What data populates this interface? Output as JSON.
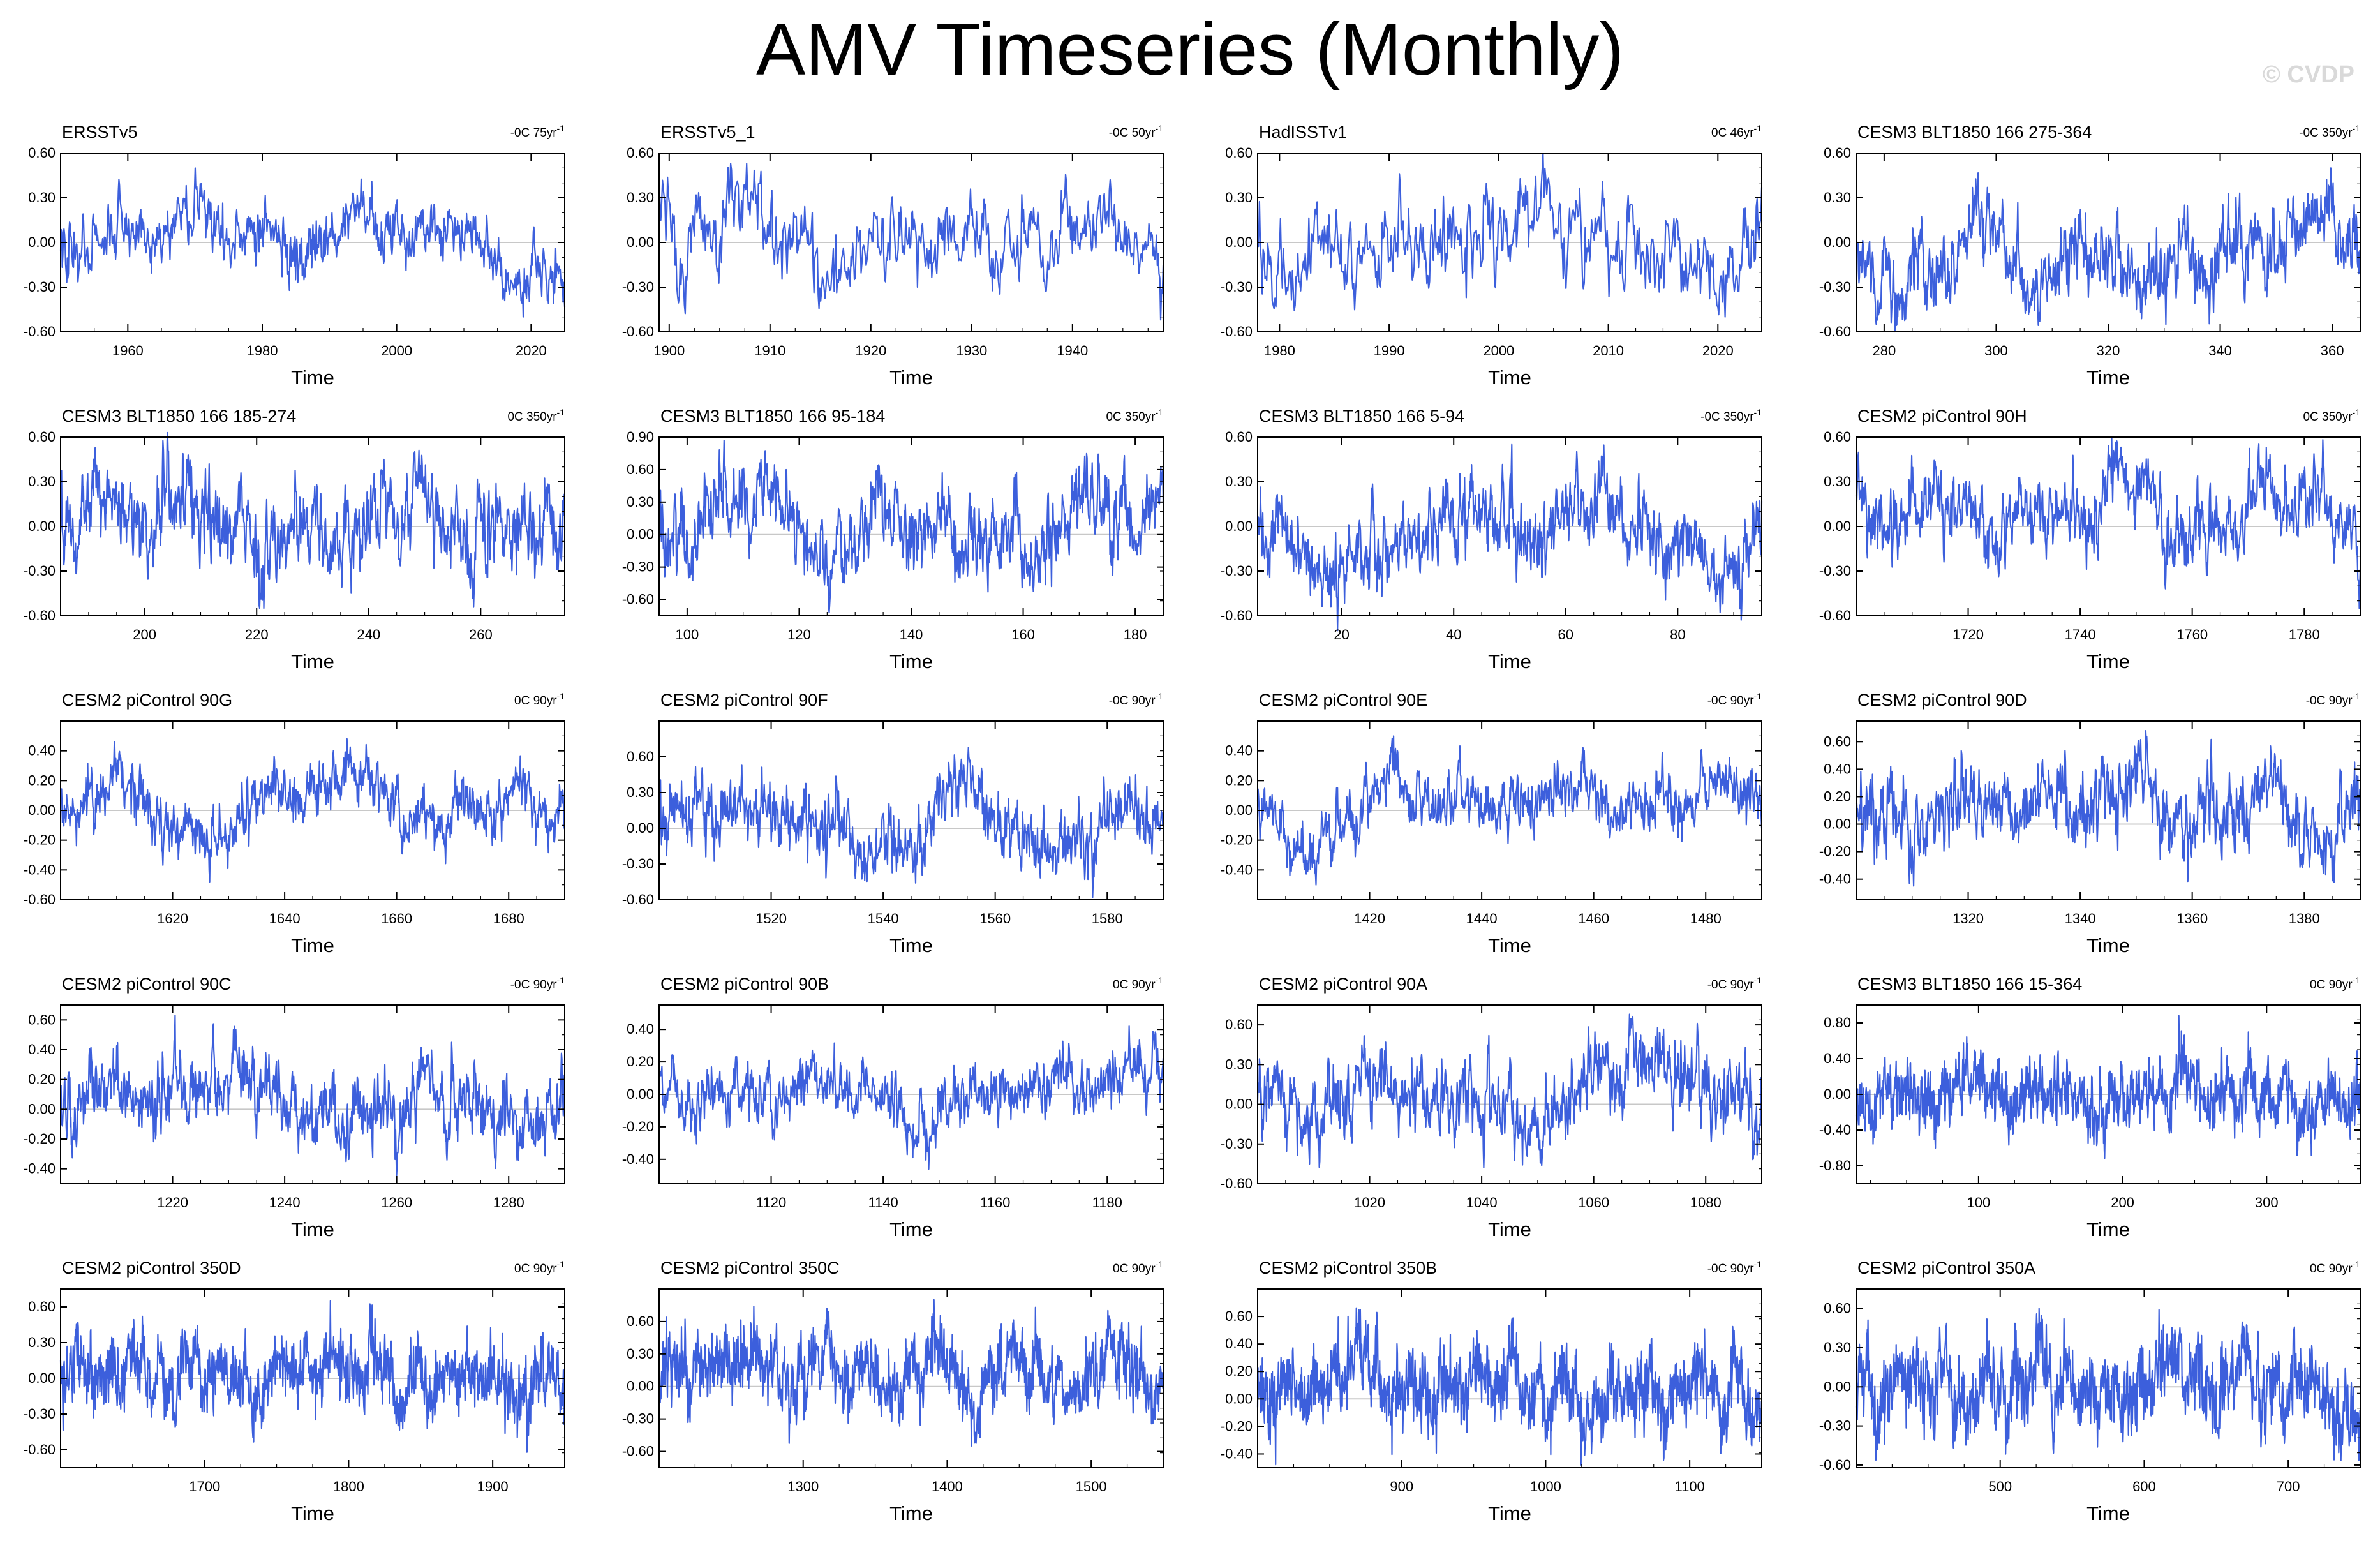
{
  "title": "AMV Timeseries (Monthly)",
  "watermark": "© CVDP",
  "colors": {
    "line": "#3c5fdc",
    "frame": "#000000",
    "zero": "#c8c8c8"
  },
  "chart_data": [
    {
      "type": "line",
      "title": "ERSSTv5",
      "trend": "-0C 75yr",
      "trend_sup": "-1",
      "xlabel": "Time",
      "xlim": [
        1950,
        2025
      ],
      "xticks": [
        1960,
        1980,
        2000,
        2020
      ],
      "ylim": [
        -0.6,
        0.6
      ],
      "yticks": [
        "-0.60",
        "-0.30",
        "0.00",
        "0.30",
        "0.60"
      ],
      "amp": 0.19,
      "min_y": -0.5,
      "max_y": 0.5
    },
    {
      "type": "line",
      "title": "ERSSTv5_1",
      "trend": "-0C 50yr",
      "trend_sup": "-1",
      "xlabel": "Time",
      "xlim": [
        1899,
        1949
      ],
      "xticks": [
        1900,
        1910,
        1920,
        1930,
        1940
      ],
      "ylim": [
        -0.6,
        0.6
      ],
      "yticks": [
        "-0.60",
        "-0.30",
        "0.00",
        "0.30",
        "0.60"
      ],
      "amp": 0.2,
      "min_y": -0.52,
      "max_y": 0.53
    },
    {
      "type": "line",
      "title": "HadISSTv1",
      "trend": "0C 46yr",
      "trend_sup": "-1",
      "xlabel": "Time",
      "xlim": [
        1978,
        2024
      ],
      "xticks": [
        1980,
        1990,
        2000,
        2010,
        2020
      ],
      "ylim": [
        -0.6,
        0.6
      ],
      "yticks": [
        "-0.60",
        "-0.30",
        "0.00",
        "0.30",
        "0.60"
      ],
      "amp": 0.18,
      "min_y": -0.5,
      "max_y": 0.6
    },
    {
      "type": "line",
      "title": "CESM3 BLT1850 166 275-364",
      "trend": "-0C 350yr",
      "trend_sup": "-1",
      "xlabel": "Time",
      "xlim": [
        275,
        365
      ],
      "xticks": [
        280,
        300,
        320,
        340,
        360
      ],
      "ylim": [
        -0.6,
        0.6
      ],
      "yticks": [
        "-0.60",
        "-0.30",
        "0.00",
        "0.30",
        "0.60"
      ],
      "amp": 0.17,
      "min_y": -0.6,
      "max_y": 0.5
    },
    {
      "type": "line",
      "title": "CESM3 BLT1850 166 185-274",
      "trend": "0C 350yr",
      "trend_sup": "-1",
      "xlabel": "Time",
      "xlim": [
        185,
        275
      ],
      "xticks": [
        200,
        220,
        240,
        260
      ],
      "ylim": [
        -0.6,
        0.6
      ],
      "yticks": [
        "-0.60",
        "-0.30",
        "0.00",
        "0.30",
        "0.60"
      ],
      "amp": 0.18,
      "min_y": -0.55,
      "max_y": 0.63
    },
    {
      "type": "line",
      "title": "CESM3 BLT1850 166 95-184",
      "trend": "0C 350yr",
      "trend_sup": "-1",
      "xlabel": "Time",
      "xlim": [
        95,
        185
      ],
      "xticks": [
        100,
        120,
        140,
        160,
        180
      ],
      "ylim": [
        -0.75,
        0.9
      ],
      "yticks": [
        "-0.60",
        "-0.30",
        "0.00",
        "0.30",
        "0.60",
        "0.90"
      ],
      "amp": 0.22,
      "min_y": -0.72,
      "max_y": 0.87
    },
    {
      "type": "line",
      "title": "CESM3 BLT1850 166 5-94",
      "trend": "-0C 350yr",
      "trend_sup": "-1",
      "xlabel": "Time",
      "xlim": [
        5,
        95
      ],
      "xticks": [
        20,
        40,
        60,
        80
      ],
      "ylim": [
        -0.6,
        0.6
      ],
      "yticks": [
        "-0.60",
        "-0.30",
        "0.00",
        "0.30",
        "0.60"
      ],
      "amp": 0.19,
      "min_y": -0.7,
      "max_y": 0.55
    },
    {
      "type": "line",
      "title": "CESM2 piControl 90H",
      "trend": "0C 350yr",
      "trend_sup": "-1",
      "xlabel": "Time",
      "xlim": [
        1700,
        1790
      ],
      "xticks": [
        1720,
        1740,
        1760,
        1780
      ],
      "ylim": [
        -0.6,
        0.6
      ],
      "yticks": [
        "-0.60",
        "-0.30",
        "0.00",
        "0.30",
        "0.60"
      ],
      "amp": 0.18,
      "min_y": -0.55,
      "max_y": 0.6
    },
    {
      "type": "line",
      "title": "CESM2 piControl 90G",
      "trend": "0C 90yr",
      "trend_sup": "-1",
      "xlabel": "Time",
      "xlim": [
        1600,
        1690
      ],
      "xticks": [
        1620,
        1640,
        1660,
        1680
      ],
      "ylim": [
        -0.6,
        0.6
      ],
      "yticks": [
        "-0.60",
        "-0.40",
        "-0.20",
        "0.00",
        "0.20",
        "0.40"
      ],
      "amp": 0.15,
      "min_y": -0.48,
      "max_y": 0.48
    },
    {
      "type": "line",
      "title": "CESM2 piControl 90F",
      "trend": "-0C 90yr",
      "trend_sup": "-1",
      "xlabel": "Time",
      "xlim": [
        1500,
        1590
      ],
      "xticks": [
        1520,
        1540,
        1560,
        1580
      ],
      "ylim": [
        -0.6,
        0.9
      ],
      "yticks": [
        "-0.60",
        "-0.30",
        "0.00",
        "0.30",
        "0.60"
      ],
      "amp": 0.2,
      "min_y": -0.58,
      "max_y": 0.68
    },
    {
      "type": "line",
      "title": "CESM2 piControl 90E",
      "trend": "-0C 90yr",
      "trend_sup": "-1",
      "xlabel": "Time",
      "xlim": [
        1400,
        1490
      ],
      "xticks": [
        1420,
        1440,
        1460,
        1480
      ],
      "ylim": [
        -0.6,
        0.6
      ],
      "yticks": [
        "-0.40",
        "-0.20",
        "0.00",
        "0.20",
        "0.40"
      ],
      "amp": 0.15,
      "min_y": -0.5,
      "max_y": 0.5
    },
    {
      "type": "line",
      "title": "CESM2 piControl 90D",
      "trend": "-0C 90yr",
      "trend_sup": "-1",
      "xlabel": "Time",
      "xlim": [
        1300,
        1390
      ],
      "xticks": [
        1320,
        1340,
        1360,
        1380
      ],
      "ylim": [
        -0.55,
        0.75
      ],
      "yticks": [
        "-0.40",
        "-0.20",
        "0.00",
        "0.20",
        "0.40",
        "0.60"
      ],
      "amp": 0.15,
      "min_y": -0.45,
      "max_y": 0.68
    },
    {
      "type": "line",
      "title": "CESM2 piControl 90C",
      "trend": "-0C 90yr",
      "trend_sup": "-1",
      "xlabel": "Time",
      "xlim": [
        1200,
        1290
      ],
      "xticks": [
        1220,
        1240,
        1260,
        1280
      ],
      "ylim": [
        -0.5,
        0.7
      ],
      "yticks": [
        "-0.40",
        "-0.20",
        "0.00",
        "0.20",
        "0.40",
        "0.60"
      ],
      "amp": 0.15,
      "min_y": -0.45,
      "max_y": 0.63
    },
    {
      "type": "line",
      "title": "CESM2 piControl 90B",
      "trend": "0C 90yr",
      "trend_sup": "-1",
      "xlabel": "Time",
      "xlim": [
        1100,
        1190
      ],
      "xticks": [
        1120,
        1140,
        1160,
        1180
      ],
      "ylim": [
        -0.55,
        0.55
      ],
      "yticks": [
        "-0.40",
        "-0.20",
        "0.00",
        "0.20",
        "0.40"
      ],
      "amp": 0.15,
      "min_y": -0.46,
      "max_y": 0.42
    },
    {
      "type": "line",
      "title": "CESM2 piControl 90A",
      "trend": "-0C 90yr",
      "trend_sup": "-1",
      "xlabel": "Time",
      "xlim": [
        1000,
        1090
      ],
      "xticks": [
        1020,
        1040,
        1060,
        1080
      ],
      "ylim": [
        -0.6,
        0.75
      ],
      "yticks": [
        "-0.60",
        "-0.30",
        "0.00",
        "0.30",
        "0.60"
      ],
      "amp": 0.18,
      "min_y": -0.48,
      "max_y": 0.68
    },
    {
      "type": "line",
      "title": "CESM3 BLT1850 166 15-364",
      "trend": "0C 90yr",
      "trend_sup": "-1",
      "xlabel": "Time",
      "xlim": [
        15,
        365
      ],
      "xticks": [
        100,
        200,
        300
      ],
      "ylim": [
        -1.0,
        1.0
      ],
      "yticks": [
        "-0.80",
        "-0.40",
        "0.00",
        "0.40",
        "0.80"
      ],
      "amp": 0.25,
      "min_y": -0.82,
      "max_y": 0.88
    },
    {
      "type": "line",
      "title": "CESM2 piControl 350D",
      "trend": "0C 90yr",
      "trend_sup": "-1",
      "xlabel": "Time",
      "xlim": [
        1600,
        1950
      ],
      "xticks": [
        1700,
        1800,
        1900
      ],
      "ylim": [
        -0.75,
        0.75
      ],
      "yticks": [
        "-0.60",
        "-0.30",
        "0.00",
        "0.30",
        "0.60"
      ],
      "amp": 0.19,
      "min_y": -0.62,
      "max_y": 0.65
    },
    {
      "type": "line",
      "title": "CESM2 piControl 350C",
      "trend": "0C 90yr",
      "trend_sup": "-1",
      "xlabel": "Time",
      "xlim": [
        1200,
        1550
      ],
      "xticks": [
        1300,
        1400,
        1500
      ],
      "ylim": [
        -0.75,
        0.9
      ],
      "yticks": [
        "-0.60",
        "-0.30",
        "0.00",
        "0.30",
        "0.60"
      ],
      "amp": 0.2,
      "min_y": -0.72,
      "max_y": 0.8
    },
    {
      "type": "line",
      "title": "CESM2 piControl 350B",
      "trend": "-0C 90yr",
      "trend_sup": "-1",
      "xlabel": "Time",
      "xlim": [
        800,
        1150
      ],
      "xticks": [
        900,
        1000,
        1100
      ],
      "ylim": [
        -0.5,
        0.8
      ],
      "yticks": [
        "-0.40",
        "-0.20",
        "0.00",
        "0.20",
        "0.40",
        "0.60"
      ],
      "amp": 0.16,
      "min_y": -0.48,
      "max_y": 0.75
    },
    {
      "type": "line",
      "title": "CESM2 piControl 350A",
      "trend": "0C 90yr",
      "trend_sup": "-1",
      "xlabel": "Time",
      "xlim": [
        400,
        750
      ],
      "xticks": [
        500,
        600,
        700
      ],
      "ylim": [
        -0.62,
        0.75
      ],
      "yticks": [
        "-0.60",
        "-0.30",
        "0.00",
        "0.30",
        "0.60"
      ],
      "amp": 0.18,
      "min_y": -0.6,
      "max_y": 0.7
    }
  ]
}
